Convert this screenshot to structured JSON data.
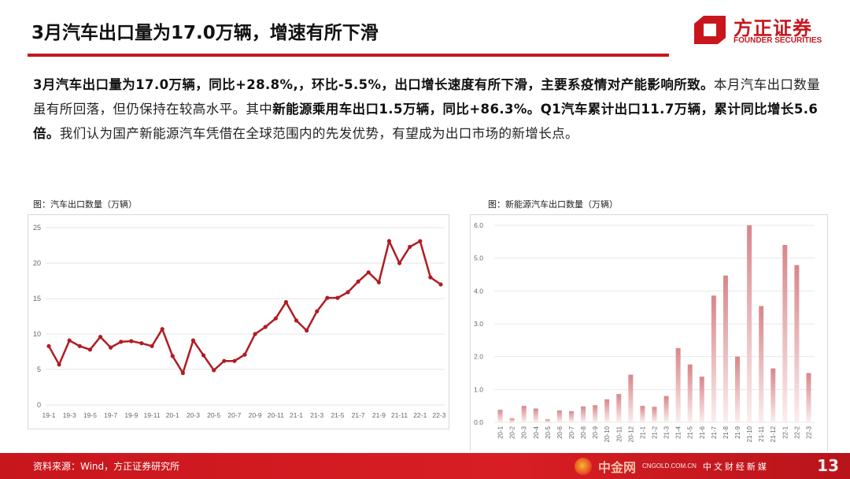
{
  "title": "3月汽车出口量为17.0万辆，增速有所下滑",
  "logo": {
    "cn": "方正证券",
    "en": "FOUNDER SECURITIES"
  },
  "paragraph": {
    "p1": "3月汽车出口量为17.0万辆，同比+28.8%,，环比-5.5%，出口增长速度有所下滑，主要系疫情对产能影响所致。",
    "p2": "本月汽车出口数量虽有所回落，但仍保持在较高水平。其中",
    "p3": "新能源乘用车出口1.5万辆，同比+86.3%。Q1汽车累计出口11.7万辆，累计同比增长5.6倍。",
    "p4": "我们认为国产新能源汽车凭借在全球范围内的先发优势，有望成为出口市场的新增长点。"
  },
  "footer": {
    "source": "资料来源：Wind，方正证券研究所",
    "page": "13"
  },
  "watermark": {
    "cn": "中金网",
    "en": "CNGOLD.COM.CN",
    "sub": "中文财经新媒"
  },
  "colors": {
    "brand": "#c8161d",
    "line": "#b01c22",
    "bar": "#d9868a"
  },
  "chart_data": [
    {
      "type": "line",
      "title": "图：汽车出口数量（万辆）",
      "ylim": [
        0,
        25
      ],
      "yticks": [
        0,
        5,
        10,
        15,
        20,
        25
      ],
      "grid": true,
      "categories": [
        "19-1",
        "19-2",
        "19-3",
        "19-4",
        "19-5",
        "19-6",
        "19-7",
        "19-8",
        "19-9",
        "19-10",
        "19-11",
        "19-12",
        "20-1",
        "20-2",
        "20-3",
        "20-4",
        "20-5",
        "20-6",
        "20-7",
        "20-8",
        "20-9",
        "20-10",
        "20-11",
        "20-12",
        "21-1",
        "21-2",
        "21-3",
        "21-4",
        "21-5",
        "21-6",
        "21-7",
        "21-8",
        "21-9",
        "21-10",
        "21-11",
        "21-12",
        "22-1",
        "22-2",
        "22-3"
      ],
      "tick_labels": [
        "19-1",
        "19-3",
        "19-5",
        "19-7",
        "19-9",
        "19-11",
        "20-1",
        "20-3",
        "20-5",
        "20-7",
        "20-9",
        "20-11",
        "21-1",
        "21-3",
        "21-5",
        "21-7",
        "21-9",
        "21-11",
        "22-1",
        "22-3"
      ],
      "values": [
        8.3,
        5.7,
        9.1,
        8.3,
        7.8,
        9.6,
        8.1,
        8.9,
        9.0,
        8.7,
        8.3,
        10.7,
        6.9,
        4.5,
        9.1,
        7.0,
        4.9,
        6.2,
        6.2,
        7.1,
        10.0,
        11.0,
        12.2,
        14.5,
        11.9,
        10.5,
        13.2,
        15.1,
        15.1,
        15.9,
        17.4,
        18.7,
        17.3,
        23.1,
        20.0,
        22.3,
        23.1,
        18.0,
        17.0
      ]
    },
    {
      "type": "bar",
      "title": "图：新能源汽车出口数量（万辆）",
      "ylim": [
        0,
        6
      ],
      "yticks": [
        "0.0",
        "1.0",
        "2.0",
        "3.0",
        "4.0",
        "5.0",
        "6.0"
      ],
      "grid": true,
      "categories": [
        "20-1",
        "20-2",
        "20-3",
        "20-4",
        "20-5",
        "20-6",
        "20-7",
        "20-8",
        "20-9",
        "20-10",
        "20-11",
        "20-12",
        "21-1",
        "21-2",
        "21-3",
        "21-4",
        "21-5",
        "21-6",
        "21-7",
        "21-8",
        "21-9",
        "21-10",
        "21-11",
        "21-12",
        "22-1",
        "22-2",
        "22-3"
      ],
      "values": [
        0.38,
        0.12,
        0.5,
        0.42,
        0.09,
        0.36,
        0.34,
        0.48,
        0.52,
        0.7,
        0.86,
        1.45,
        0.5,
        0.47,
        0.8,
        2.26,
        1.76,
        1.39,
        3.86,
        4.47,
        2.0,
        6.0,
        3.54,
        1.64,
        5.4,
        4.79,
        1.5
      ]
    }
  ]
}
